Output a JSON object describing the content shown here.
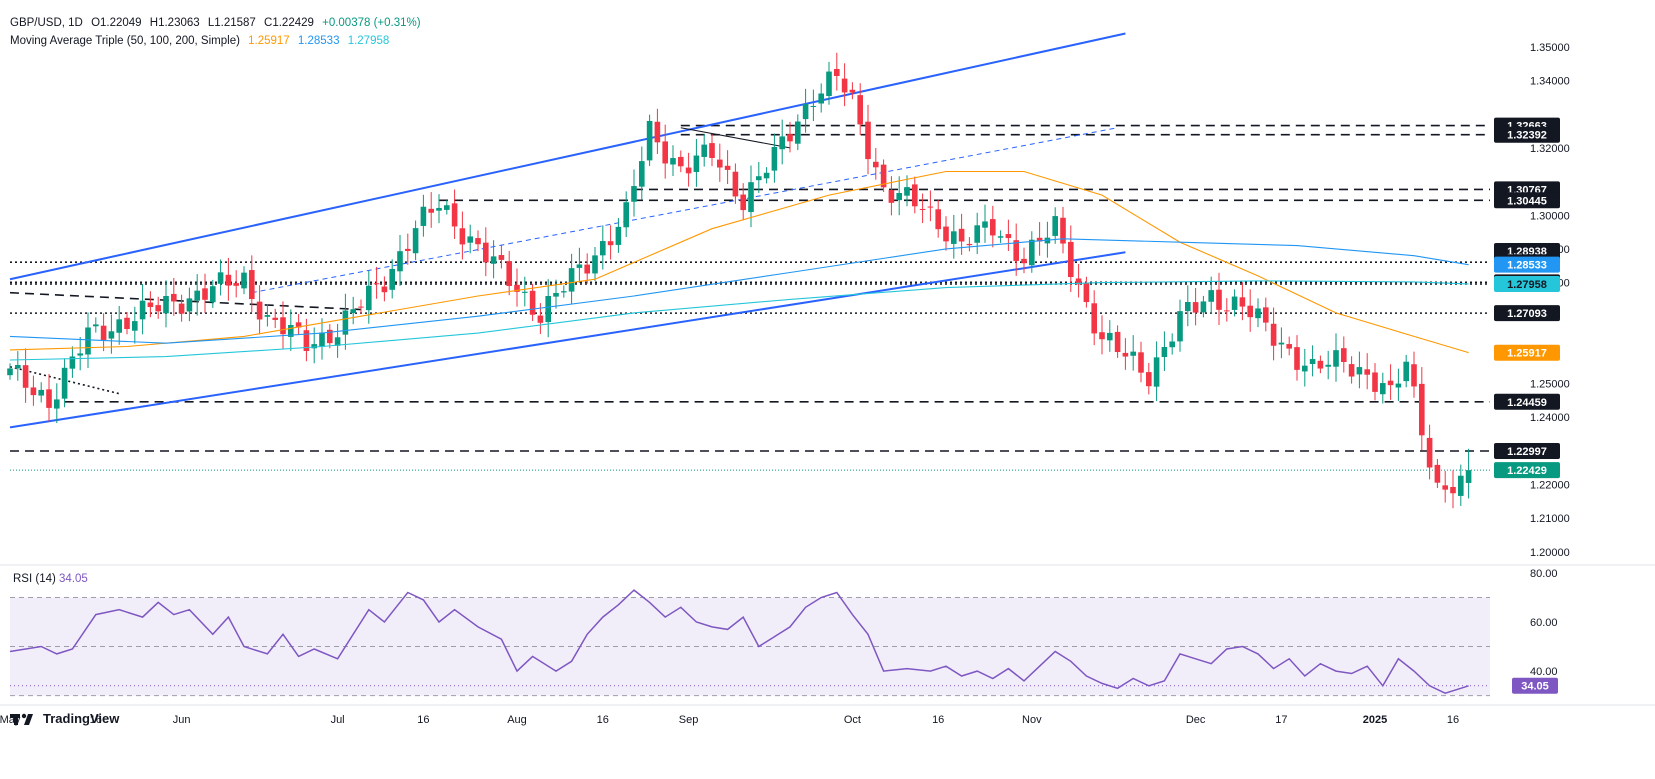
{
  "header": {
    "symbol": "GBP/USD, 1D",
    "open": "O1.22049",
    "high": "H1.23063",
    "low": "L1.21587",
    "close": "C1.22429",
    "change": "+0.00378 (+0.31%)",
    "ma_label": "Moving Average Triple (50, 100, 200, Simple)",
    "ma50": "1.25917",
    "ma100": "1.28533",
    "ma200": "1.27958"
  },
  "rsi_header": {
    "label": "RSI (14)",
    "value": "34.05"
  },
  "logo": {
    "text": "TradingView"
  },
  "colors": {
    "up": "#089981",
    "down": "#f23645",
    "ma50": "#ff9800",
    "ma100": "#2196f3",
    "ma200": "#26c6da",
    "trend": "#2962ff",
    "rsi": "#7e57c2",
    "rsi_band": "#ede7f6"
  },
  "chart_data": {
    "type": "candlestick",
    "price_axis": {
      "ylim": [
        1.197,
        1.358
      ],
      "ticks": [
        "1.35000",
        "1.34000",
        "1.32000",
        "1.30000",
        "1.29000",
        "1.28000",
        "1.25000",
        "1.24000",
        "1.22000",
        "1.21000",
        "1.20000"
      ],
      "tick_values": [
        1.35,
        1.34,
        1.32,
        1.3,
        1.29,
        1.28,
        1.25,
        1.24,
        1.22,
        1.21,
        1.2
      ]
    },
    "price_labels": [
      {
        "text": "1.32663",
        "value": 1.32663,
        "kind": "level"
      },
      {
        "text": "1.32392",
        "value": 1.32392,
        "kind": "level"
      },
      {
        "text": "1.30767",
        "value": 1.30767,
        "kind": "level"
      },
      {
        "text": "1.30445",
        "value": 1.30445,
        "kind": "level"
      },
      {
        "text": "1.28938",
        "value": 1.28938,
        "kind": "level"
      },
      {
        "text": "1.28605",
        "value": 1.28605,
        "kind": "level"
      },
      {
        "text": "1.28533",
        "value": 1.28533,
        "kind": "ma100"
      },
      {
        "text": "1.28007",
        "value": 1.28007,
        "kind": "level"
      },
      {
        "text": "1.27958",
        "value": 1.27958,
        "kind": "ma200"
      },
      {
        "text": "1.27093",
        "value": 1.27093,
        "kind": "level"
      },
      {
        "text": "1.25917",
        "value": 1.25917,
        "kind": "ma50"
      },
      {
        "text": "1.24459",
        "value": 1.24459,
        "kind": "level"
      },
      {
        "text": "1.22997",
        "value": 1.22997,
        "kind": "level"
      },
      {
        "text": "1.22429",
        "value": 1.22429,
        "kind": "last"
      }
    ],
    "time_axis": {
      "ticks": [
        {
          "label": "May",
          "bar": 0
        },
        {
          "label": "16",
          "bar": 11
        },
        {
          "label": "Jun",
          "bar": 22
        },
        {
          "label": "Jul",
          "bar": 42
        },
        {
          "label": "16",
          "bar": 53
        },
        {
          "label": "Aug",
          "bar": 65
        },
        {
          "label": "16",
          "bar": 76
        },
        {
          "label": "Sep",
          "bar": 87
        },
        {
          "label": "Oct",
          "bar": 108
        },
        {
          "label": "16",
          "bar": 119
        },
        {
          "label": "Nov",
          "bar": 131
        },
        {
          "label": "Dec",
          "bar": 152
        },
        {
          "label": "17",
          "bar": 163
        },
        {
          "label": "2025",
          "bar": 175
        },
        {
          "label": "16",
          "bar": 185
        }
      ]
    },
    "anchors": [
      {
        "bar": 0,
        "price": 1.253
      },
      {
        "bar": 5,
        "price": 1.245
      },
      {
        "bar": 10,
        "price": 1.264
      },
      {
        "bar": 16,
        "price": 1.27
      },
      {
        "bar": 22,
        "price": 1.275
      },
      {
        "bar": 30,
        "price": 1.281
      },
      {
        "bar": 33,
        "price": 1.269
      },
      {
        "bar": 38,
        "price": 1.262
      },
      {
        "bar": 42,
        "price": 1.266
      },
      {
        "bar": 48,
        "price": 1.281
      },
      {
        "bar": 52,
        "price": 1.296
      },
      {
        "bar": 55,
        "price": 1.303
      },
      {
        "bar": 59,
        "price": 1.293
      },
      {
        "bar": 63,
        "price": 1.283
      },
      {
        "bar": 68,
        "price": 1.271
      },
      {
        "bar": 74,
        "price": 1.286
      },
      {
        "bar": 79,
        "price": 1.3
      },
      {
        "bar": 82,
        "price": 1.325
      },
      {
        "bar": 86,
        "price": 1.314
      },
      {
        "bar": 90,
        "price": 1.318
      },
      {
        "bar": 94,
        "price": 1.305
      },
      {
        "bar": 98,
        "price": 1.317
      },
      {
        "bar": 103,
        "price": 1.336
      },
      {
        "bar": 106,
        "price": 1.341
      },
      {
        "bar": 108,
        "price": 1.333
      },
      {
        "bar": 112,
        "price": 1.308
      },
      {
        "bar": 117,
        "price": 1.302
      },
      {
        "bar": 122,
        "price": 1.292
      },
      {
        "bar": 126,
        "price": 1.296
      },
      {
        "bar": 130,
        "price": 1.288
      },
      {
        "bar": 134,
        "price": 1.296
      },
      {
        "bar": 140,
        "price": 1.263
      },
      {
        "bar": 146,
        "price": 1.253
      },
      {
        "bar": 150,
        "price": 1.269
      },
      {
        "bar": 154,
        "price": 1.276
      },
      {
        "bar": 158,
        "price": 1.273
      },
      {
        "bar": 162,
        "price": 1.264
      },
      {
        "bar": 167,
        "price": 1.254
      },
      {
        "bar": 171,
        "price": 1.257
      },
      {
        "bar": 174,
        "price": 1.253
      },
      {
        "bar": 177,
        "price": 1.246
      },
      {
        "bar": 179,
        "price": 1.256
      },
      {
        "bar": 183,
        "price": 1.219
      },
      {
        "bar": 186,
        "price": 1.219
      },
      {
        "bar": 187,
        "price": 1.2243
      }
    ],
    "last_candle": {
      "open": 1.22049,
      "high": 1.23063,
      "low": 1.21587,
      "close": 1.22429
    },
    "moving_averages": [
      {
        "name": "MA 50",
        "points": [
          [
            0,
            1.26
          ],
          [
            15,
            1.261
          ],
          [
            30,
            1.264
          ],
          [
            45,
            1.27
          ],
          [
            60,
            1.276
          ],
          [
            75,
            1.281
          ],
          [
            90,
            1.296
          ],
          [
            105,
            1.306
          ],
          [
            120,
            1.313
          ],
          [
            130,
            1.313
          ],
          [
            140,
            1.306
          ],
          [
            150,
            1.292
          ],
          [
            160,
            1.282
          ],
          [
            170,
            1.271
          ],
          [
            180,
            1.264
          ],
          [
            187,
            1.2592
          ]
        ]
      },
      {
        "name": "MA 100",
        "points": [
          [
            0,
            1.264
          ],
          [
            20,
            1.262
          ],
          [
            40,
            1.265
          ],
          [
            60,
            1.27
          ],
          [
            80,
            1.276
          ],
          [
            100,
            1.283
          ],
          [
            120,
            1.29
          ],
          [
            135,
            1.293
          ],
          [
            150,
            1.292
          ],
          [
            165,
            1.291
          ],
          [
            180,
            1.288
          ],
          [
            187,
            1.2853
          ]
        ]
      },
      {
        "name": "MA 200",
        "points": [
          [
            0,
            1.257
          ],
          [
            20,
            1.258
          ],
          [
            40,
            1.261
          ],
          [
            60,
            1.265
          ],
          [
            80,
            1.271
          ],
          [
            100,
            1.275
          ],
          [
            120,
            1.2785
          ],
          [
            140,
            1.28
          ],
          [
            160,
            1.2805
          ],
          [
            180,
            1.2802
          ],
          [
            187,
            1.2796
          ]
        ]
      }
    ],
    "levels": [
      {
        "value": 1.32663,
        "style": "dashed",
        "from_bar": 86
      },
      {
        "value": 1.32392,
        "style": "dashed",
        "from_bar": 86
      },
      {
        "value": 1.30767,
        "style": "dashed",
        "from_bar": 80
      },
      {
        "value": 1.30445,
        "style": "dashed",
        "from_bar": 55
      },
      {
        "value": 1.28605,
        "style": "dotted",
        "from_bar": 0
      },
      {
        "value": 1.28007,
        "style": "dotted",
        "from_bar": 0
      },
      {
        "value": 1.27958,
        "style": "dotted",
        "from_bar": 0
      },
      {
        "value": 1.27093,
        "style": "dotted",
        "from_bar": 0
      },
      {
        "value": 1.24459,
        "style": "dashed",
        "from_bar": 7
      },
      {
        "value": 1.22997,
        "style": "dashed",
        "from_bar": 0
      }
    ],
    "trendlines": [
      {
        "style": "solid",
        "from": [
          0,
          1.281
        ],
        "to": [
          143,
          1.354
        ]
      },
      {
        "style": "solid",
        "from": [
          0,
          1.237
        ],
        "to": [
          143,
          1.289
        ]
      },
      {
        "style": "dashed",
        "from": [
          31,
          1.277
        ],
        "to": [
          142,
          1.326
        ]
      },
      {
        "style": "dashed-dark",
        "from": [
          0,
          1.277
        ],
        "to": [
          45,
          1.272
        ]
      },
      {
        "style": "dotted-dark",
        "from": [
          0,
          1.255
        ],
        "to": [
          14,
          1.247
        ]
      },
      {
        "style": "thin-dark",
        "from": [
          86,
          1.326
        ],
        "to": [
          100,
          1.32
        ]
      }
    ],
    "rsi": {
      "name": "RSI (14)",
      "ylim": [
        27,
        82
      ],
      "ticks": [
        "80.00",
        "60.00",
        "40.00"
      ],
      "tick_values": [
        80,
        60,
        40
      ],
      "band": [
        30,
        70
      ],
      "midline": 50,
      "last": "34.05",
      "points": [
        [
          0,
          48
        ],
        [
          4,
          50
        ],
        [
          6,
          47
        ],
        [
          8,
          49
        ],
        [
          11,
          63
        ],
        [
          14,
          65
        ],
        [
          17,
          62
        ],
        [
          19,
          68
        ],
        [
          21,
          63
        ],
        [
          23,
          65
        ],
        [
          26,
          55
        ],
        [
          28,
          62
        ],
        [
          30,
          50
        ],
        [
          33,
          47
        ],
        [
          35,
          55
        ],
        [
          37,
          46
        ],
        [
          39,
          49
        ],
        [
          42,
          45
        ],
        [
          46,
          65
        ],
        [
          48,
          60
        ],
        [
          51,
          72
        ],
        [
          53,
          69
        ],
        [
          55,
          60
        ],
        [
          57,
          65
        ],
        [
          60,
          58
        ],
        [
          63,
          53
        ],
        [
          65,
          40
        ],
        [
          67,
          46
        ],
        [
          70,
          40
        ],
        [
          72,
          44
        ],
        [
          74,
          55
        ],
        [
          76,
          62
        ],
        [
          78,
          67
        ],
        [
          80,
          73
        ],
        [
          82,
          68
        ],
        [
          84,
          62
        ],
        [
          86,
          66
        ],
        [
          88,
          60
        ],
        [
          90,
          58
        ],
        [
          92,
          57
        ],
        [
          94,
          62
        ],
        [
          96,
          50
        ],
        [
          98,
          54
        ],
        [
          100,
          58
        ],
        [
          102,
          66
        ],
        [
          104,
          70
        ],
        [
          106,
          72
        ],
        [
          108,
          63
        ],
        [
          110,
          55
        ],
        [
          112,
          40
        ],
        [
          115,
          41
        ],
        [
          118,
          40
        ],
        [
          120,
          42
        ],
        [
          122,
          38
        ],
        [
          124,
          40
        ],
        [
          126,
          37
        ],
        [
          128,
          41
        ],
        [
          130,
          36
        ],
        [
          132,
          42
        ],
        [
          134,
          48
        ],
        [
          136,
          44
        ],
        [
          138,
          38
        ],
        [
          140,
          35
        ],
        [
          142,
          33
        ],
        [
          144,
          37
        ],
        [
          146,
          34
        ],
        [
          148,
          36
        ],
        [
          150,
          47
        ],
        [
          152,
          45
        ],
        [
          154,
          43
        ],
        [
          156,
          49
        ],
        [
          158,
          50
        ],
        [
          160,
          47
        ],
        [
          162,
          41
        ],
        [
          164,
          45
        ],
        [
          166,
          38
        ],
        [
          168,
          43
        ],
        [
          170,
          40
        ],
        [
          172,
          39
        ],
        [
          174,
          42
        ],
        [
          176,
          34
        ],
        [
          178,
          45
        ],
        [
          180,
          40
        ],
        [
          182,
          34
        ],
        [
          184,
          31
        ],
        [
          186,
          33
        ],
        [
          187,
          34
        ]
      ]
    }
  }
}
